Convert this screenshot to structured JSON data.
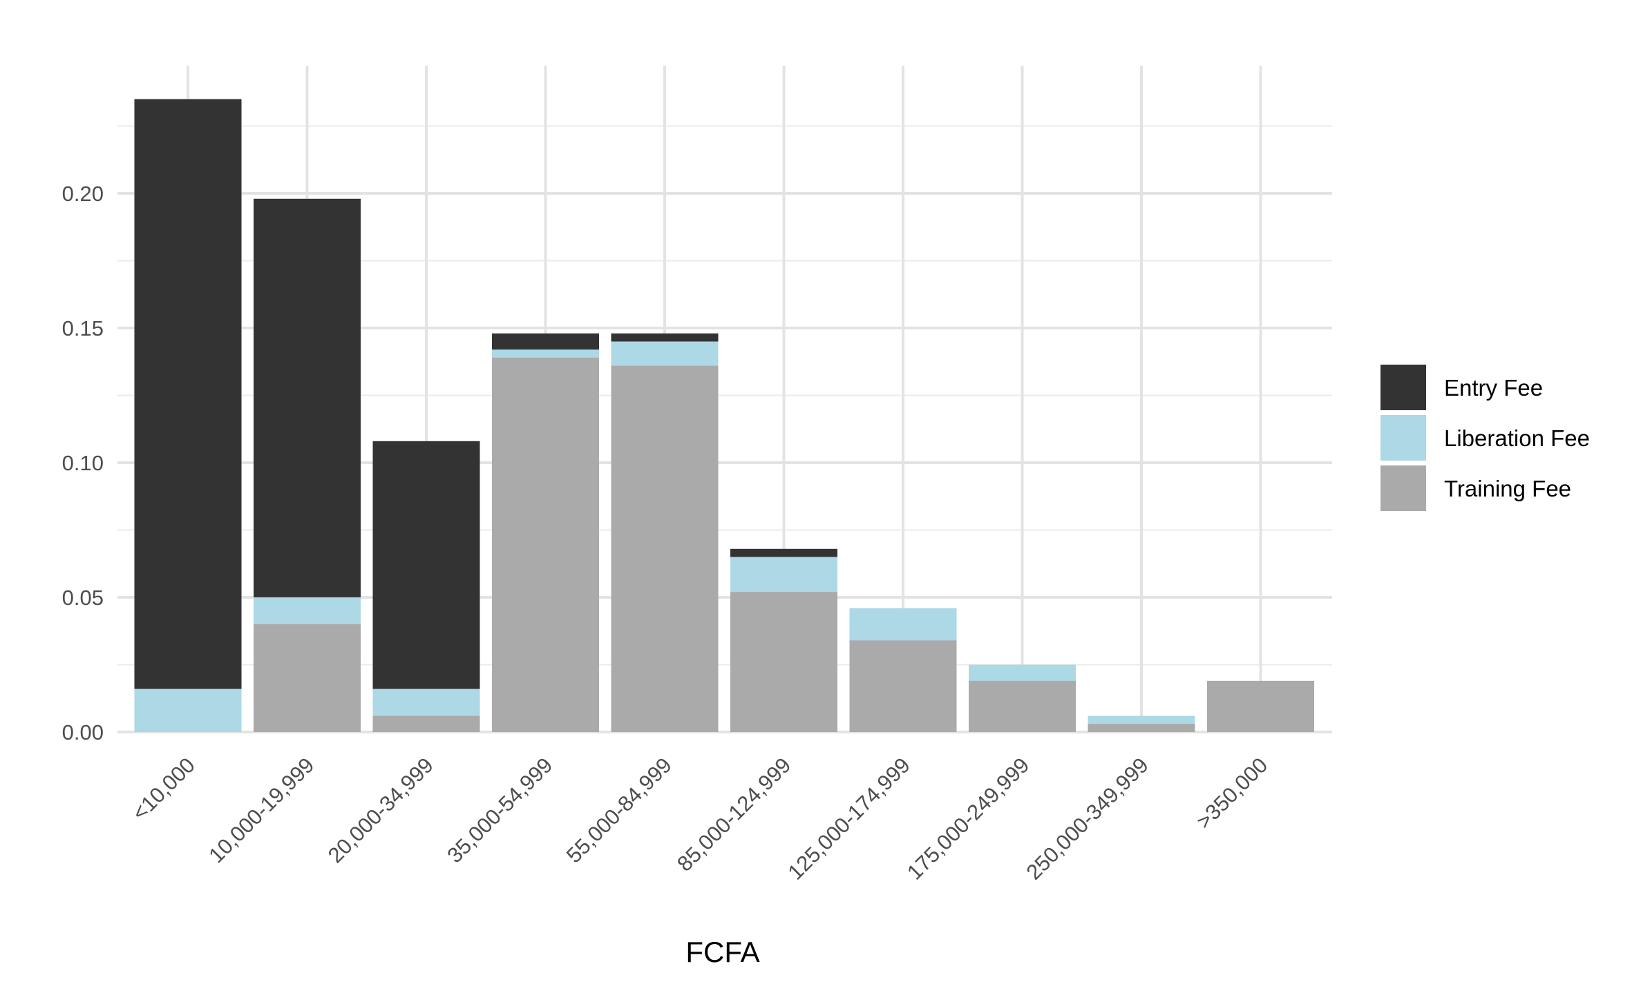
{
  "chart_data": {
    "type": "bar",
    "title": "",
    "xlabel": "FCFA",
    "ylabel": "",
    "ylim": [
      0,
      0.245
    ],
    "yticks": [
      0.0,
      0.05,
      0.1,
      0.15,
      0.2
    ],
    "ytick_labels": [
      "0.00",
      "0.05",
      "0.10",
      "0.15",
      "0.20"
    ],
    "grid": true,
    "legend_position": "right",
    "bar_mode": "overlay",
    "categories": [
      "<10,000",
      "10,000-19,999",
      "20,000-34,999",
      "35,000-54,999",
      "55,000-84,999",
      "85,000-124,999",
      "125,000-174,999",
      "175,000-249,999",
      "250,000-349,999",
      ">350,000"
    ],
    "series": [
      {
        "name": "Entry Fee",
        "color": "#333333",
        "values": [
          0.235,
          0.198,
          0.108,
          0.148,
          0.148,
          0.068,
          0.0,
          0.0,
          0.0,
          0.0
        ]
      },
      {
        "name": "Liberation Fee",
        "color": "#add8e6",
        "values": [
          0.016,
          0.05,
          0.016,
          0.142,
          0.145,
          0.065,
          0.046,
          0.025,
          0.006,
          0.0
        ]
      },
      {
        "name": "Training Fee",
        "color": "#aaaaaa",
        "values": [
          0.0,
          0.04,
          0.006,
          0.139,
          0.136,
          0.052,
          0.034,
          0.019,
          0.003,
          0.019
        ]
      }
    ]
  }
}
